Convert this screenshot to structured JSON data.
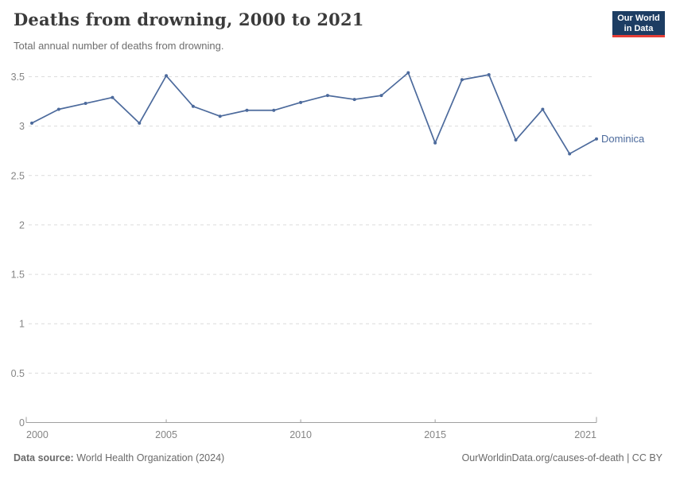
{
  "header": {
    "title": "Deaths from drowning, 2000 to 2021",
    "subtitle": "Total annual number of deaths from drowning."
  },
  "logo": {
    "line1": "Our World",
    "line2": "in Data",
    "bg_color": "#1d3d63",
    "accent_color": "#e63e36"
  },
  "chart_data": {
    "type": "line",
    "title": "Deaths from drowning, 2000 to 2021",
    "x": [
      2000,
      2001,
      2002,
      2003,
      2004,
      2005,
      2006,
      2007,
      2008,
      2009,
      2010,
      2011,
      2012,
      2013,
      2014,
      2015,
      2016,
      2017,
      2018,
      2019,
      2020,
      2021
    ],
    "series": [
      {
        "name": "Dominica",
        "color": "#4c6a9c",
        "values": [
          3.03,
          3.17,
          3.23,
          3.29,
          3.03,
          3.51,
          3.2,
          3.1,
          3.16,
          3.16,
          3.24,
          3.31,
          3.27,
          3.31,
          3.54,
          2.83,
          3.47,
          3.52,
          2.86,
          3.17,
          2.72,
          2.87
        ]
      }
    ],
    "xlabel": "",
    "ylabel": "",
    "ylim": [
      0,
      3.5
    ],
    "yticks": [
      0,
      0.5,
      1,
      1.5,
      2,
      2.5,
      3,
      3.5
    ],
    "ytick_labels": [
      "0",
      "0.5",
      "1",
      "1.5",
      "2",
      "2.5",
      "3",
      "3.5"
    ],
    "xticks": [
      2000,
      2005,
      2010,
      2015,
      2021
    ],
    "xtick_labels": [
      "2000",
      "2005",
      "2010",
      "2015",
      "2021"
    ],
    "grid": "horizontal-dashed",
    "legend_position": "end-of-line",
    "line_color": "#4c6a9c",
    "gridline_color": "#dcdcdc",
    "axis_color": "#a0a0a0",
    "tick_label_color": "#858585"
  },
  "footer": {
    "source_label": "Data source:",
    "source_value": " World Health Organization (2024)",
    "credit": "OurWorldinData.org/causes-of-death | CC BY"
  }
}
